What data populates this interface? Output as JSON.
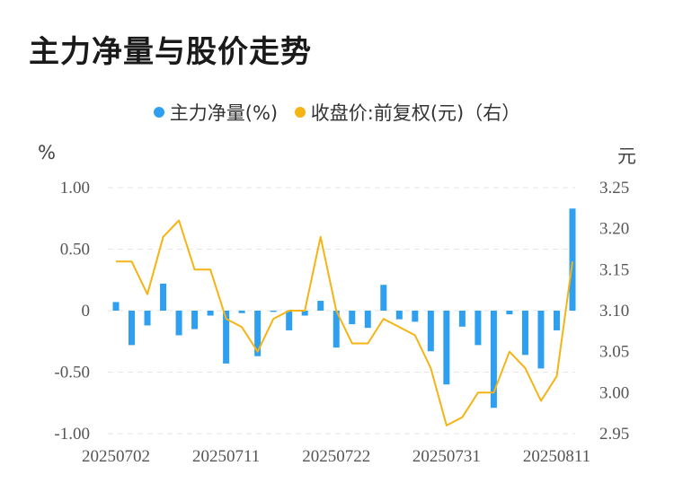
{
  "title": "主力净量与股价走势",
  "legend": {
    "bar_label": "主力净量(%)",
    "line_label": "收盘价:前复权(元)（右）"
  },
  "units": {
    "left": "%",
    "right": "元"
  },
  "colors": {
    "bar": "#2f9ff0",
    "line": "#f5b414",
    "grid": "#e6e6e6",
    "text": "#555555"
  },
  "chart_data": {
    "type": "bar+line",
    "title": "主力净量与股价走势",
    "x_ticks": [
      "20250702",
      "20250711",
      "20250722",
      "20250731",
      "20250811"
    ],
    "y_left": {
      "label": "%",
      "range": [
        -1.0,
        1.0
      ],
      "ticks": [
        "1.00",
        "0.50",
        "0",
        "-0.50",
        "-1.00"
      ],
      "tick_values": [
        1.0,
        0.5,
        0,
        -0.5,
        -1.0
      ]
    },
    "y_right": {
      "label": "元",
      "range": [
        2.95,
        3.25
      ],
      "ticks": [
        "3.25",
        "3.20",
        "3.15",
        "3.10",
        "3.05",
        "3.00",
        "2.95"
      ],
      "tick_values": [
        3.25,
        3.2,
        3.15,
        3.1,
        3.05,
        3.0,
        2.95
      ]
    },
    "series": [
      {
        "name": "主力净量(%)",
        "type": "bar",
        "axis": "left",
        "values": [
          0.07,
          -0.28,
          -0.12,
          0.22,
          -0.2,
          -0.15,
          -0.04,
          -0.43,
          -0.02,
          -0.37,
          -0.01,
          -0.16,
          -0.04,
          0.08,
          -0.3,
          -0.11,
          -0.14,
          0.21,
          -0.07,
          -0.09,
          -0.33,
          -0.6,
          -0.13,
          -0.28,
          -0.79,
          -0.03,
          -0.36,
          -0.47,
          -0.16,
          0.83
        ]
      },
      {
        "name": "收盘价:前复权(元)（右）",
        "type": "line",
        "axis": "right",
        "values": [
          3.16,
          3.16,
          3.12,
          3.19,
          3.21,
          3.15,
          3.15,
          3.09,
          3.08,
          3.05,
          3.09,
          3.1,
          3.1,
          3.19,
          3.1,
          3.06,
          3.06,
          3.09,
          3.08,
          3.07,
          3.03,
          2.96,
          2.97,
          3.0,
          3.0,
          3.05,
          3.03,
          2.99,
          3.02,
          3.16
        ]
      }
    ],
    "x_tick_indices": [
      0,
      7,
      14,
      21,
      28
    ]
  }
}
